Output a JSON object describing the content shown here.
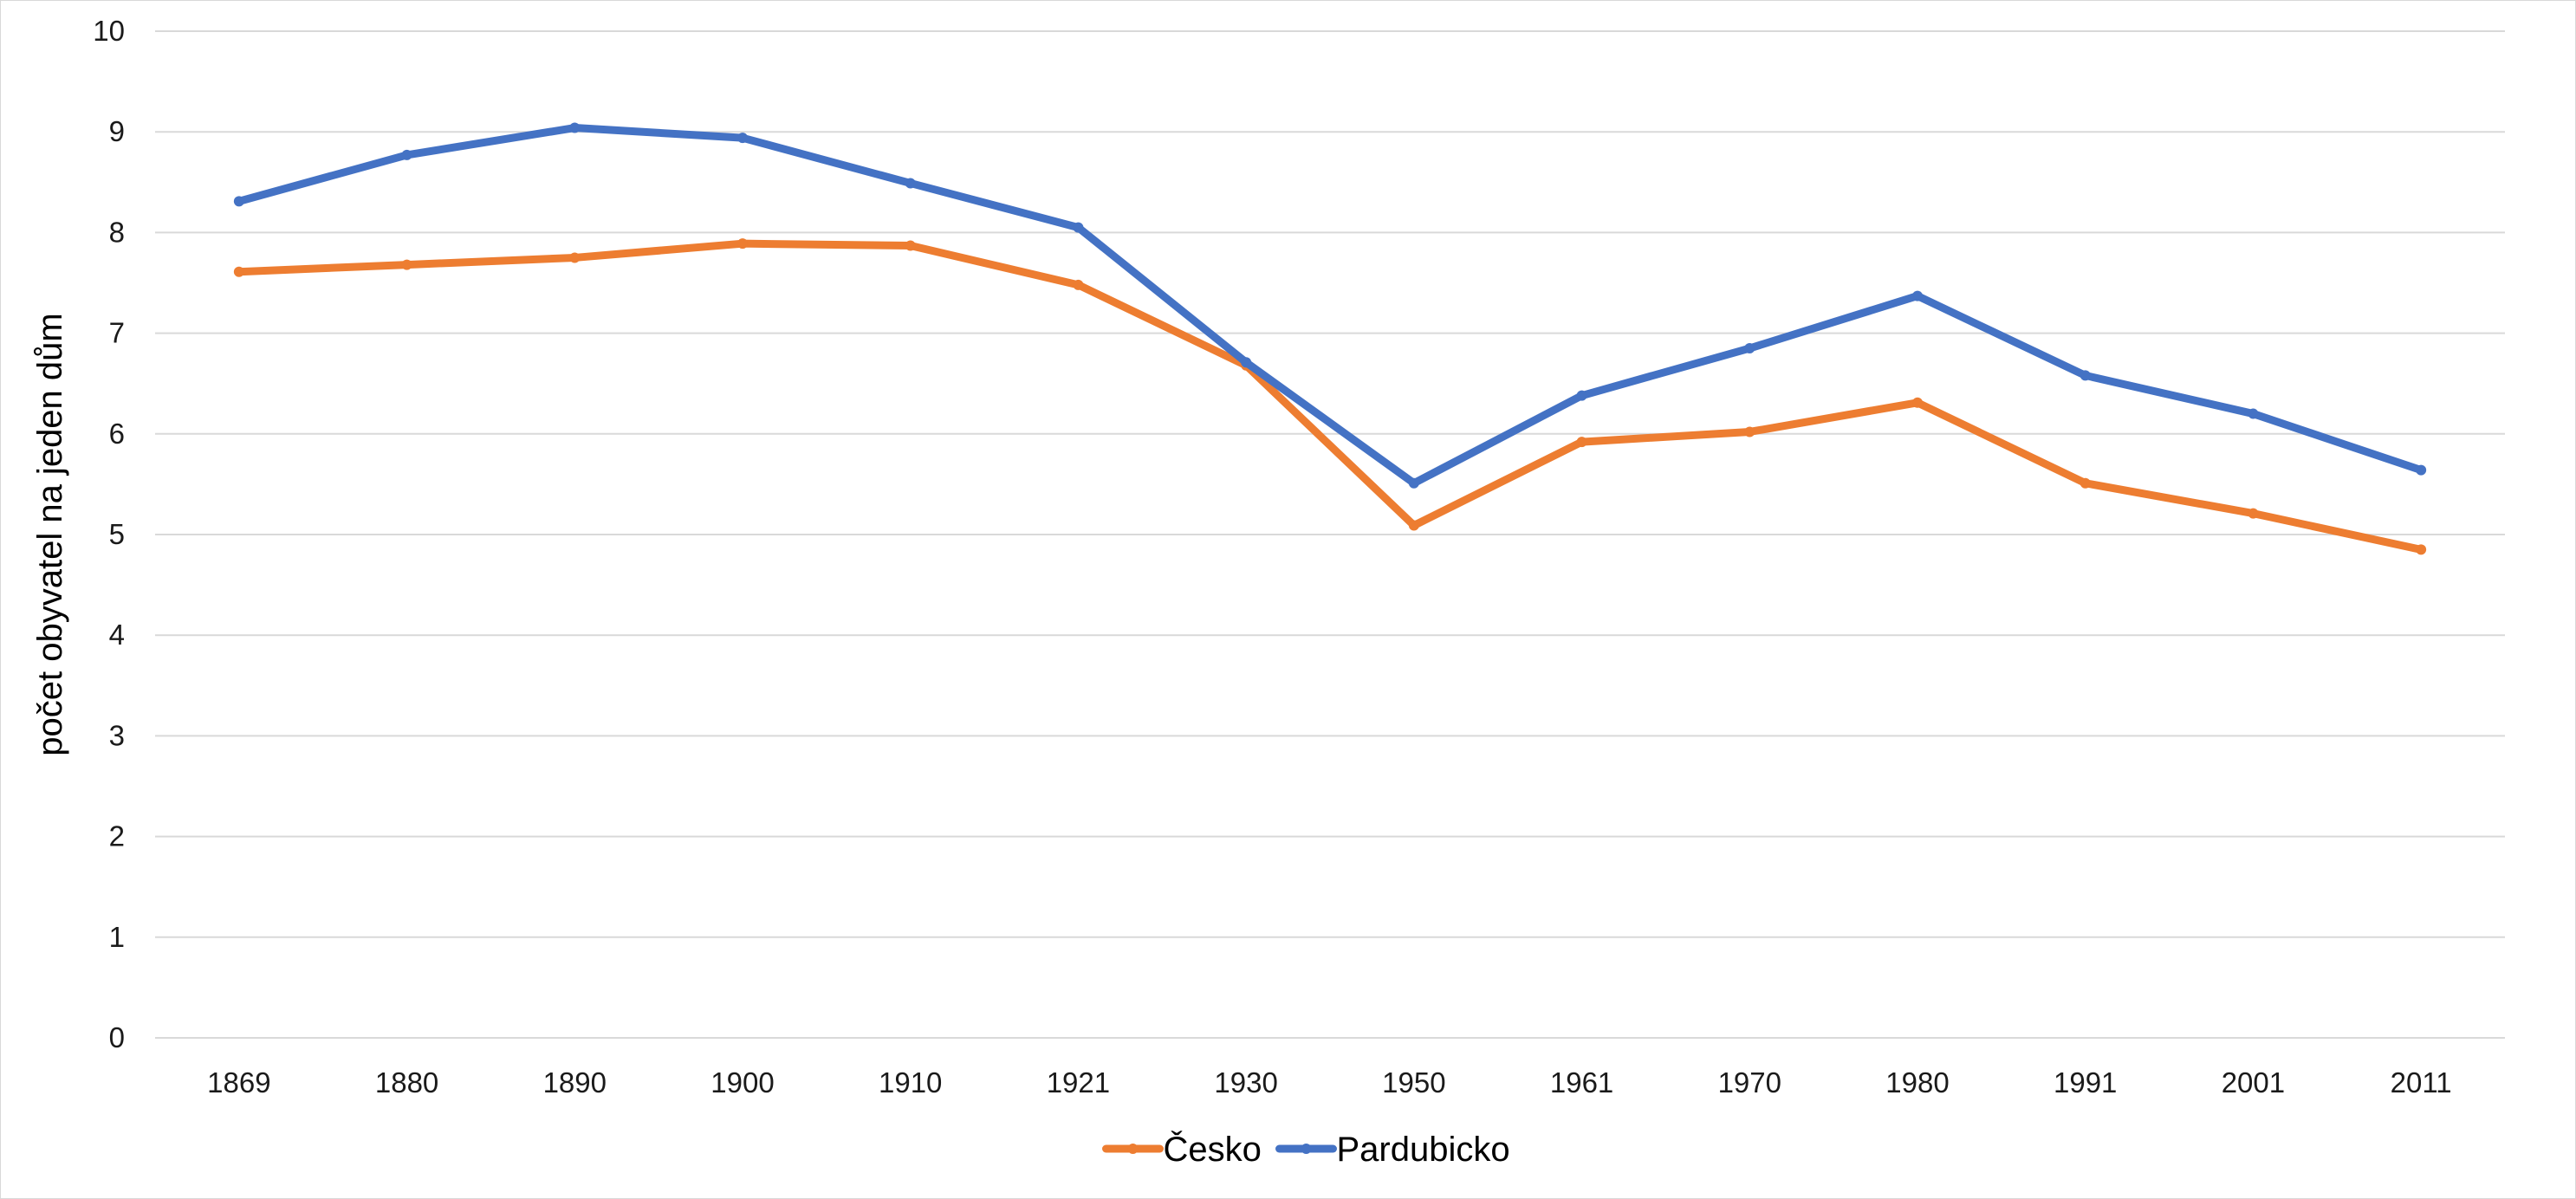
{
  "chart_data": {
    "type": "line",
    "title": "",
    "xlabel": "",
    "ylabel": "počet obyvatel na jeden dům",
    "ylim": [
      0,
      10
    ],
    "yticks": [
      "0",
      "1",
      "2",
      "3",
      "4",
      "5",
      "6",
      "7",
      "8",
      "9",
      "10"
    ],
    "categories": [
      "1869",
      "1880",
      "1890",
      "1900",
      "1910",
      "1921",
      "1930",
      "1950",
      "1961",
      "1970",
      "1980",
      "1991",
      "2001",
      "2011"
    ],
    "grid": true,
    "legend_position": "bottom",
    "series": [
      {
        "name": "Česko",
        "color": "#ed7d31",
        "values": [
          7.61,
          7.68,
          7.75,
          7.89,
          7.87,
          7.48,
          6.68,
          5.09,
          5.92,
          6.02,
          6.31,
          5.51,
          5.21,
          4.85
        ]
      },
      {
        "name": "Pardubicko",
        "color": "#4472c4",
        "values": [
          8.31,
          8.77,
          9.04,
          8.94,
          8.49,
          8.05,
          6.71,
          5.51,
          6.38,
          6.85,
          7.37,
          6.58,
          6.2,
          5.64
        ]
      }
    ]
  }
}
